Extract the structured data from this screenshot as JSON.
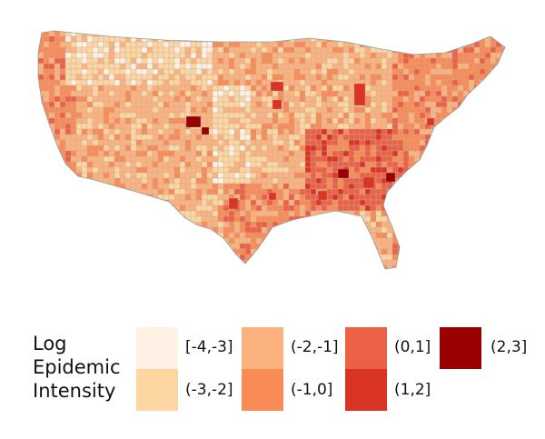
{
  "map": {
    "region": "Contiguous United States, county level",
    "fill_levels": [
      "#fff1e3",
      "#fdd6a1",
      "#fcb27e",
      "#f98b57",
      "#ec6046",
      "#d93424",
      "#990000"
    ]
  },
  "legend": {
    "title_lines": [
      "Log",
      "Epidemic",
      "Intensity"
    ],
    "bins": [
      {
        "label": "[-4,-3]",
        "color": "#fff1e3"
      },
      {
        "label": "(-3,-2]",
        "color": "#fdd6a1"
      },
      {
        "label": "(-2,-1]",
        "color": "#fcb27e"
      },
      {
        "label": "(-1,0]",
        "color": "#f98b57"
      },
      {
        "label": "(0,1]",
        "color": "#ec6046"
      },
      {
        "label": "(1,2]",
        "color": "#d93424"
      },
      {
        "label": "(2,3]",
        "color": "#990000"
      }
    ]
  }
}
